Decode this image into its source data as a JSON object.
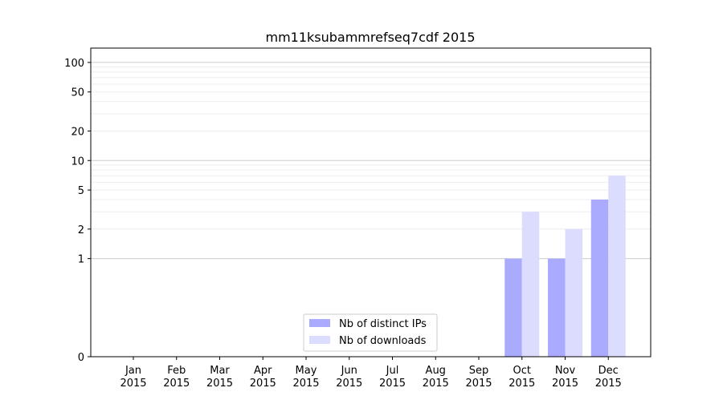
{
  "chart_data": {
    "type": "bar",
    "title": "mm11ksubammrefseq7cdf 2015",
    "xlabel": "",
    "ylabel": "",
    "y_scale": "symlog",
    "ylim": [
      0,
      140
    ],
    "y_ticks": [
      {
        "value": 0,
        "label": "0"
      },
      {
        "value": 1,
        "label": "1"
      },
      {
        "value": 2,
        "label": "2"
      },
      {
        "value": 5,
        "label": "5"
      },
      {
        "value": 10,
        "label": "10"
      },
      {
        "value": 20,
        "label": "20"
      },
      {
        "value": 50,
        "label": "50"
      },
      {
        "value": 100,
        "label": "100"
      }
    ],
    "grid": true,
    "legend_position": "lower-center",
    "categories": [
      {
        "month": "Jan",
        "year": "2015"
      },
      {
        "month": "Feb",
        "year": "2015"
      },
      {
        "month": "Mar",
        "year": "2015"
      },
      {
        "month": "Apr",
        "year": "2015"
      },
      {
        "month": "May",
        "year": "2015"
      },
      {
        "month": "Jun",
        "year": "2015"
      },
      {
        "month": "Jul",
        "year": "2015"
      },
      {
        "month": "Aug",
        "year": "2015"
      },
      {
        "month": "Sep",
        "year": "2015"
      },
      {
        "month": "Oct",
        "year": "2015"
      },
      {
        "month": "Nov",
        "year": "2015"
      },
      {
        "month": "Dec",
        "year": "2015"
      }
    ],
    "series": [
      {
        "name": "Nb of distinct IPs",
        "color": "#aaaaff",
        "values": [
          0,
          0,
          0,
          0,
          0,
          0,
          0,
          0,
          0,
          1,
          1,
          4
        ]
      },
      {
        "name": "Nb of downloads",
        "color": "#dcdcff",
        "values": [
          0,
          0,
          0,
          0,
          0,
          0,
          0,
          0,
          0,
          3,
          2,
          7
        ]
      }
    ]
  }
}
